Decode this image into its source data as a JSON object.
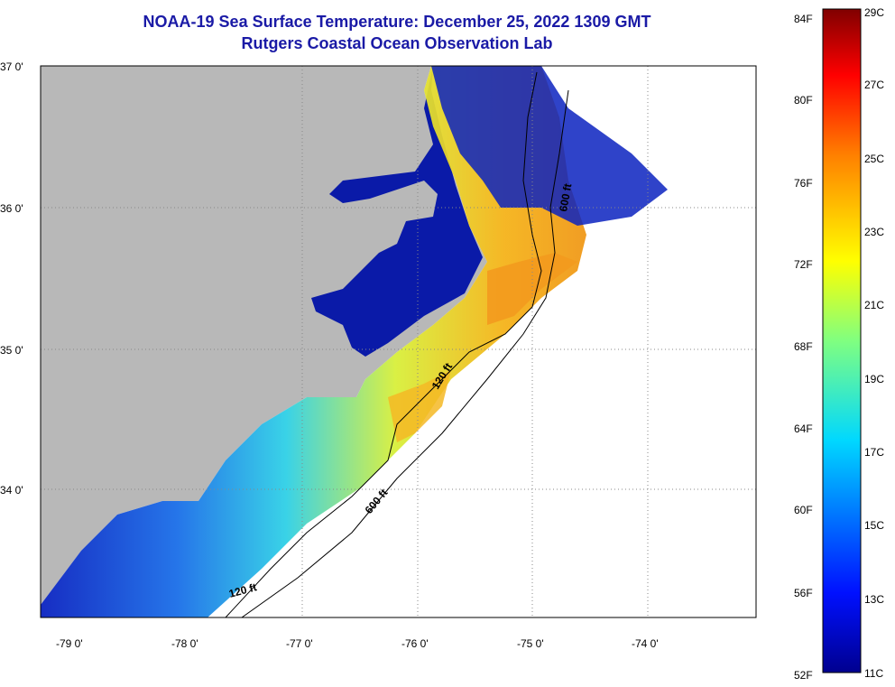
{
  "title": {
    "line1": "NOAA-19 Sea Surface Temperature:  December 25, 2022 1309 GMT",
    "line2": "Rutgers Coastal Ocean Observation Lab"
  },
  "map": {
    "lat_labels": [
      "37 0'",
      "36 0'",
      "35 0'",
      "34 0'"
    ],
    "lon_labels": [
      "-79 0'",
      "-78 0'",
      "-77 0'",
      "-76 0'",
      "-75 0'",
      "-74 0'"
    ],
    "contours": [
      "120 ft",
      "600 ft",
      "120 ft",
      "600 ft"
    ]
  },
  "colorbar": {
    "fahrenheit": [
      "84F",
      "80F",
      "76F",
      "72F",
      "68F",
      "64F",
      "60F",
      "56F",
      "52F"
    ],
    "celsius": [
      "29C",
      "27C",
      "25C",
      "23C",
      "21C",
      "19C",
      "17C",
      "15C",
      "13C",
      "11C"
    ]
  },
  "colors": {
    "land": "#b8b8b8",
    "estuary": "#0a1aa8",
    "title": "#1a1aa6"
  }
}
